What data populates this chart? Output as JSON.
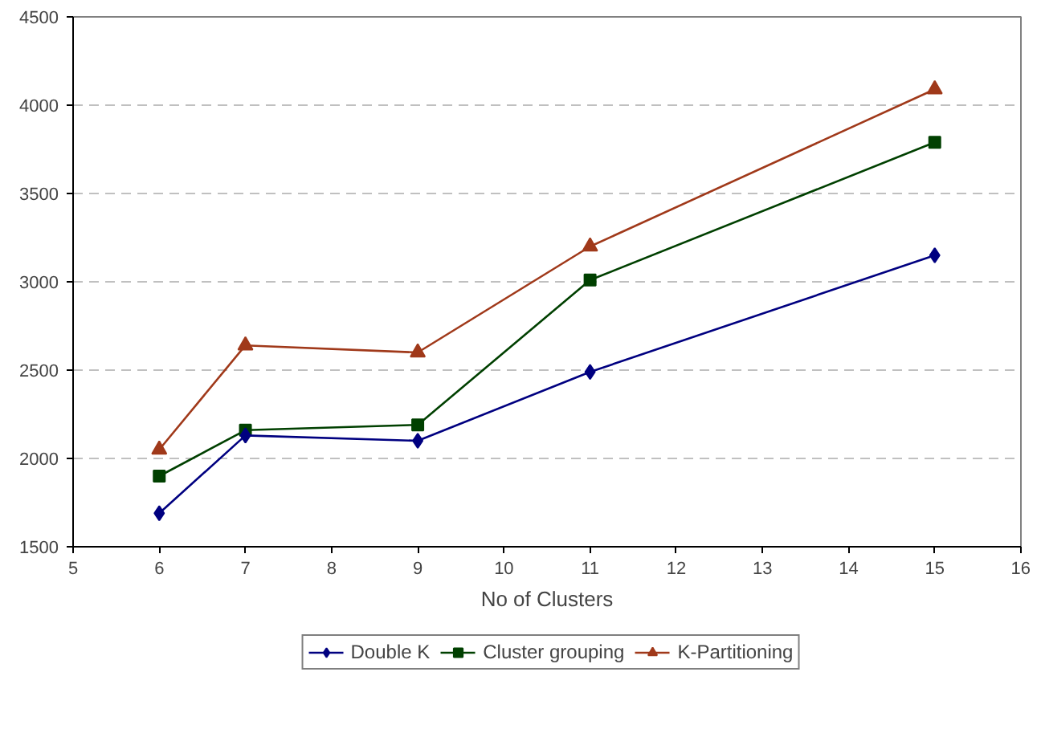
{
  "chart_data": {
    "type": "line",
    "xlabel": "No of Clusters",
    "x": [
      6,
      7,
      9,
      11,
      15
    ],
    "series": [
      {
        "name": "Double K",
        "color": "#000080",
        "marker": "diamond",
        "values": [
          1690,
          2130,
          2100,
          2490,
          3150
        ]
      },
      {
        "name": "Cluster grouping",
        "color": "#004000",
        "marker": "square",
        "values": [
          1900,
          2160,
          2190,
          3010,
          3790
        ]
      },
      {
        "name": "K-Partitioning",
        "color": "#a0391a",
        "marker": "triangle",
        "values": [
          2050,
          2640,
          2600,
          3200,
          4090
        ]
      }
    ],
    "xlim": [
      5,
      16
    ],
    "xticks": [
      5,
      6,
      7,
      8,
      9,
      10,
      11,
      12,
      13,
      14,
      15,
      16
    ],
    "ylim": [
      1500,
      4500
    ],
    "yticks": [
      1500,
      2000,
      2500,
      3000,
      3500,
      4000,
      4500
    ],
    "grid": "y",
    "legend": "bottom",
    "line_style": "solid"
  }
}
